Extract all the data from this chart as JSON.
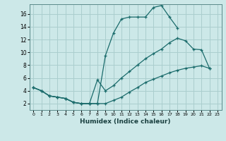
{
  "xlabel": "Humidex (Indice chaleur)",
  "background_color": "#cce8e8",
  "grid_color": "#aacece",
  "line_color": "#1a6b6b",
  "xlim": [
    -0.5,
    23.5
  ],
  "ylim": [
    1,
    17.5
  ],
  "xticks": [
    0,
    1,
    2,
    3,
    4,
    5,
    6,
    7,
    8,
    9,
    10,
    11,
    12,
    13,
    14,
    15,
    16,
    17,
    18,
    19,
    20,
    21,
    22,
    23
  ],
  "yticks": [
    2,
    4,
    6,
    8,
    10,
    12,
    14,
    16
  ],
  "series": [
    {
      "x": [
        0,
        1,
        2,
        3,
        4,
        5,
        6,
        7,
        8,
        9,
        10,
        11,
        12,
        13,
        14,
        15,
        16,
        17,
        18
      ],
      "y": [
        4.5,
        4.0,
        3.2,
        3.0,
        2.8,
        2.2,
        2.0,
        2.0,
        2.0,
        9.5,
        13.0,
        15.2,
        15.5,
        15.5,
        15.5,
        17.0,
        17.3,
        15.5,
        13.8
      ]
    },
    {
      "x": [
        0,
        1,
        2,
        3,
        4,
        5,
        6,
        7,
        8,
        9,
        10,
        11,
        12,
        13,
        14,
        15,
        16,
        17,
        18,
        19,
        20,
        21,
        22
      ],
      "y": [
        4.5,
        4.0,
        3.2,
        3.0,
        2.8,
        2.2,
        2.0,
        2.0,
        5.7,
        4.0,
        4.8,
        6.0,
        7.0,
        8.0,
        9.0,
        9.8,
        10.5,
        11.5,
        12.2,
        11.8,
        10.5,
        10.4,
        7.5
      ]
    },
    {
      "x": [
        0,
        1,
        2,
        3,
        4,
        5,
        6,
        7,
        8,
        9,
        10,
        11,
        12,
        13,
        14,
        15,
        16,
        17,
        18,
        19,
        20,
        21,
        22
      ],
      "y": [
        4.5,
        4.0,
        3.2,
        3.0,
        2.8,
        2.2,
        2.0,
        2.0,
        2.0,
        2.0,
        2.5,
        3.0,
        3.8,
        4.5,
        5.3,
        5.8,
        6.3,
        6.8,
        7.2,
        7.5,
        7.7,
        7.9,
        7.5
      ]
    }
  ]
}
